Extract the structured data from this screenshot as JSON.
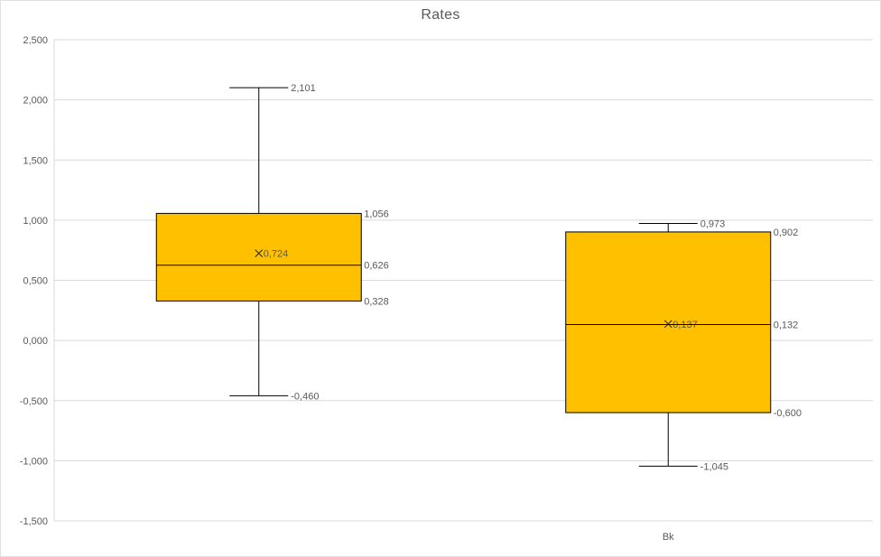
{
  "title": "Rates",
  "colors": {
    "box_fill": "#FFC000",
    "box_border": "#000000",
    "whisker": "#000000",
    "median": "#000000",
    "mean_marker": "#262626",
    "gridline": "#D9D9D9",
    "axis_line": "#D9D9D9",
    "tick_text": "#595959",
    "label_text": "#595959",
    "title_text": "#595959",
    "chart_border": "#E0E0E0"
  },
  "chart_data": {
    "type": "boxplot",
    "title": "Rates",
    "grid": true,
    "legend": false,
    "categories": [
      "",
      "Bk"
    ],
    "y_axis": {
      "min": -1.5,
      "max": 2.5,
      "step": 0.5,
      "tick_labels": [
        "2,500",
        "2,000",
        "1,500",
        "1,000",
        "0,500",
        "0,000",
        "-0,500",
        "-1,000",
        "-1,500"
      ]
    },
    "series": [
      {
        "category": "",
        "max": 2.101,
        "q3": 1.056,
        "mean": 0.724,
        "median": 0.626,
        "q1": 0.328,
        "min": -0.46,
        "labels": {
          "max": "2,101",
          "q3": "1,056",
          "mean": "0,724",
          "median": "0,626",
          "q1": "0,328",
          "min": "-0,460"
        }
      },
      {
        "category": "Bk",
        "max": 0.973,
        "q3": 0.902,
        "mean": 0.137,
        "median": 0.132,
        "q1": -0.6,
        "min": -1.045,
        "labels": {
          "max": "0,973",
          "q3": "0,902",
          "mean": "0,137",
          "median": "0,132",
          "q1": "-0,600",
          "min": "-1,045"
        }
      }
    ]
  }
}
